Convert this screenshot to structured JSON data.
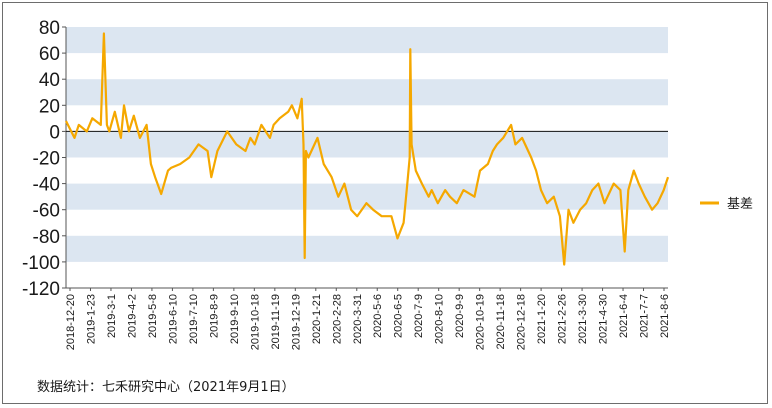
{
  "chart_data": {
    "type": "line",
    "series": [
      {
        "name": "基差",
        "color": "#f5a800",
        "points": [
          [
            "2018-12-20",
            8
          ],
          [
            "2019-1-3",
            -5
          ],
          [
            "2019-1-10",
            5
          ],
          [
            "2019-1-23",
            0
          ],
          [
            "2019-2-1",
            10
          ],
          [
            "2019-2-15",
            5
          ],
          [
            "2019-2-20",
            75
          ],
          [
            "2019-2-25",
            5
          ],
          [
            "2019-3-1",
            0
          ],
          [
            "2019-3-10",
            15
          ],
          [
            "2019-3-20",
            -5
          ],
          [
            "2019-3-25",
            20
          ],
          [
            "2019-4-2",
            0
          ],
          [
            "2019-4-10",
            12
          ],
          [
            "2019-4-20",
            -5
          ],
          [
            "2019-5-1",
            5
          ],
          [
            "2019-5-8",
            -25
          ],
          [
            "2019-5-15",
            -35
          ],
          [
            "2019-5-25",
            -48
          ],
          [
            "2019-6-5",
            -30
          ],
          [
            "2019-6-10",
            -28
          ],
          [
            "2019-6-25",
            -25
          ],
          [
            "2019-7-10",
            -20
          ],
          [
            "2019-7-25",
            -10
          ],
          [
            "2019-8-9",
            -15
          ],
          [
            "2019-8-15",
            -35
          ],
          [
            "2019-8-25",
            -15
          ],
          [
            "2019-9-10",
            0
          ],
          [
            "2019-9-25",
            -10
          ],
          [
            "2019-10-10",
            -15
          ],
          [
            "2019-10-18",
            -5
          ],
          [
            "2019-10-25",
            -10
          ],
          [
            "2019-11-5",
            5
          ],
          [
            "2019-11-19",
            -5
          ],
          [
            "2019-11-25",
            5
          ],
          [
            "2019-12-5",
            10
          ],
          [
            "2019-12-19",
            15
          ],
          [
            "2019-12-25",
            20
          ],
          [
            "2020-1-3",
            10
          ],
          [
            "2020-1-10",
            25
          ],
          [
            "2020-1-13",
            -10
          ],
          [
            "2020-1-15",
            -97
          ],
          [
            "2020-1-17",
            -15
          ],
          [
            "2020-1-21",
            -20
          ],
          [
            "2020-2-5",
            -5
          ],
          [
            "2020-2-15",
            -25
          ],
          [
            "2020-2-28",
            -35
          ],
          [
            "2020-3-10",
            -50
          ],
          [
            "2020-3-20",
            -40
          ],
          [
            "2020-3-31",
            -60
          ],
          [
            "2020-4-10",
            -65
          ],
          [
            "2020-4-25",
            -55
          ],
          [
            "2020-5-6",
            -60
          ],
          [
            "2020-5-20",
            -65
          ],
          [
            "2020-6-5",
            -65
          ],
          [
            "2020-6-15",
            -82
          ],
          [
            "2020-6-25",
            -70
          ],
          [
            "2020-7-1",
            -40
          ],
          [
            "2020-7-5",
            -20
          ],
          [
            "2020-7-6",
            63
          ],
          [
            "2020-7-8",
            -10
          ],
          [
            "2020-7-15",
            -30
          ],
          [
            "2020-7-25",
            -40
          ],
          [
            "2020-8-5",
            -50
          ],
          [
            "2020-8-10",
            -45
          ],
          [
            "2020-8-20",
            -55
          ],
          [
            "2020-9-1",
            -45
          ],
          [
            "2020-9-9",
            -50
          ],
          [
            "2020-9-20",
            -55
          ],
          [
            "2020-10-1",
            -45
          ],
          [
            "2020-10-19",
            -50
          ],
          [
            "2020-10-28",
            -30
          ],
          [
            "2020-11-10",
            -25
          ],
          [
            "2020-11-18",
            -15
          ],
          [
            "2020-11-25",
            -10
          ],
          [
            "2020-12-5",
            -5
          ],
          [
            "2020-12-18",
            5
          ],
          [
            "2020-12-25",
            -10
          ],
          [
            "2021-1-5",
            -5
          ],
          [
            "2021-1-20",
            -20
          ],
          [
            "2021-1-28",
            -30
          ],
          [
            "2021-2-5",
            -45
          ],
          [
            "2021-2-15",
            -55
          ],
          [
            "2021-2-26",
            -50
          ],
          [
            "2021-3-8",
            -65
          ],
          [
            "2021-3-15",
            -102
          ],
          [
            "2021-3-22",
            -60
          ],
          [
            "2021-3-30",
            -70
          ],
          [
            "2021-4-10",
            -60
          ],
          [
            "2021-4-20",
            -55
          ],
          [
            "2021-4-30",
            -45
          ],
          [
            "2021-5-10",
            -40
          ],
          [
            "2021-5-20",
            -55
          ],
          [
            "2021-6-4",
            -40
          ],
          [
            "2021-6-15",
            -45
          ],
          [
            "2021-6-22",
            -92
          ],
          [
            "2021-6-28",
            -45
          ],
          [
            "2021-7-7",
            -30
          ],
          [
            "2021-7-15",
            -40
          ],
          [
            "2021-7-25",
            -50
          ],
          [
            "2021-8-6",
            -60
          ],
          [
            "2021-8-15",
            -55
          ],
          [
            "2021-8-25",
            -45
          ],
          [
            "2021-9-1",
            -35
          ]
        ]
      }
    ],
    "y_ticks": [
      80,
      60,
      40,
      20,
      0,
      -20,
      -40,
      -60,
      -80,
      -100,
      -120
    ],
    "ylim": [
      -120,
      80
    ],
    "x_tick_labels": [
      "2018-12-20",
      "2019-1-23",
      "2019-3-1",
      "2019-4-2",
      "2019-5-8",
      "2019-6-10",
      "2019-7-10",
      "2019-8-9",
      "2019-9-10",
      "2019-10-18",
      "2019-11-19",
      "2019-12-19",
      "2020-1-21",
      "2020-2-28",
      "2020-3-31",
      "2020-5-6",
      "2020-6-5",
      "2020-7-9",
      "2020-8-10",
      "2020-9-9",
      "2020-10-19",
      "2020-11-18",
      "2020-12-18",
      "2021-1-20",
      "2021-2-26",
      "2021-3-30",
      "2021-4-30",
      "2021-6-4",
      "2021-7-7",
      "2021-8-6"
    ],
    "xlim": [
      "2018-12-20",
      "2021-9-1"
    ],
    "grid": "alternating horizontal bands",
    "band_color": "#dce6f1",
    "legend": {
      "position": "right",
      "label": "基差"
    }
  },
  "source_note": "数据统计：七禾研究中心（2021年9月1日）"
}
